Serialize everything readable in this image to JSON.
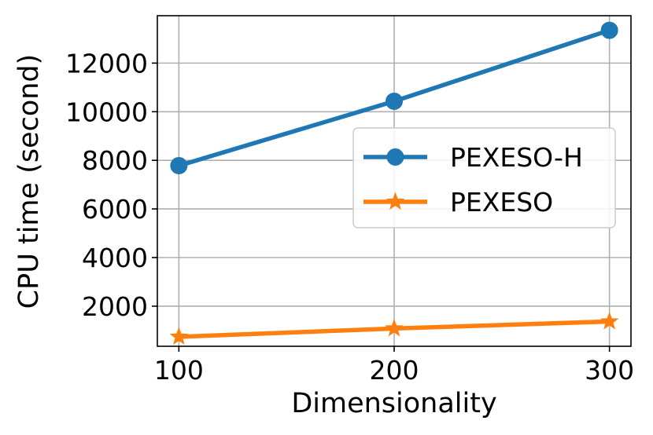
{
  "chart_data": {
    "type": "line",
    "title": "",
    "xlabel": "Dimensionality",
    "ylabel": "CPU time (second)",
    "x": [
      100,
      200,
      300
    ],
    "xticks": [
      "100",
      "200",
      "300"
    ],
    "yticks": [
      "2000",
      "4000",
      "6000",
      "8000",
      "10000",
      "12000"
    ],
    "xlim": [
      90,
      310
    ],
    "ylim": [
      350,
      13950
    ],
    "grid": true,
    "legend_position": "center-right",
    "series": [
      {
        "name": "PEXESO-H",
        "values": [
          7780,
          10430,
          13350
        ],
        "color": "#1f77b4",
        "marker": "circle"
      },
      {
        "name": "PEXESO",
        "values": [
          740,
          1080,
          1370
        ],
        "color": "#ff7f0e",
        "marker": "star"
      }
    ]
  }
}
